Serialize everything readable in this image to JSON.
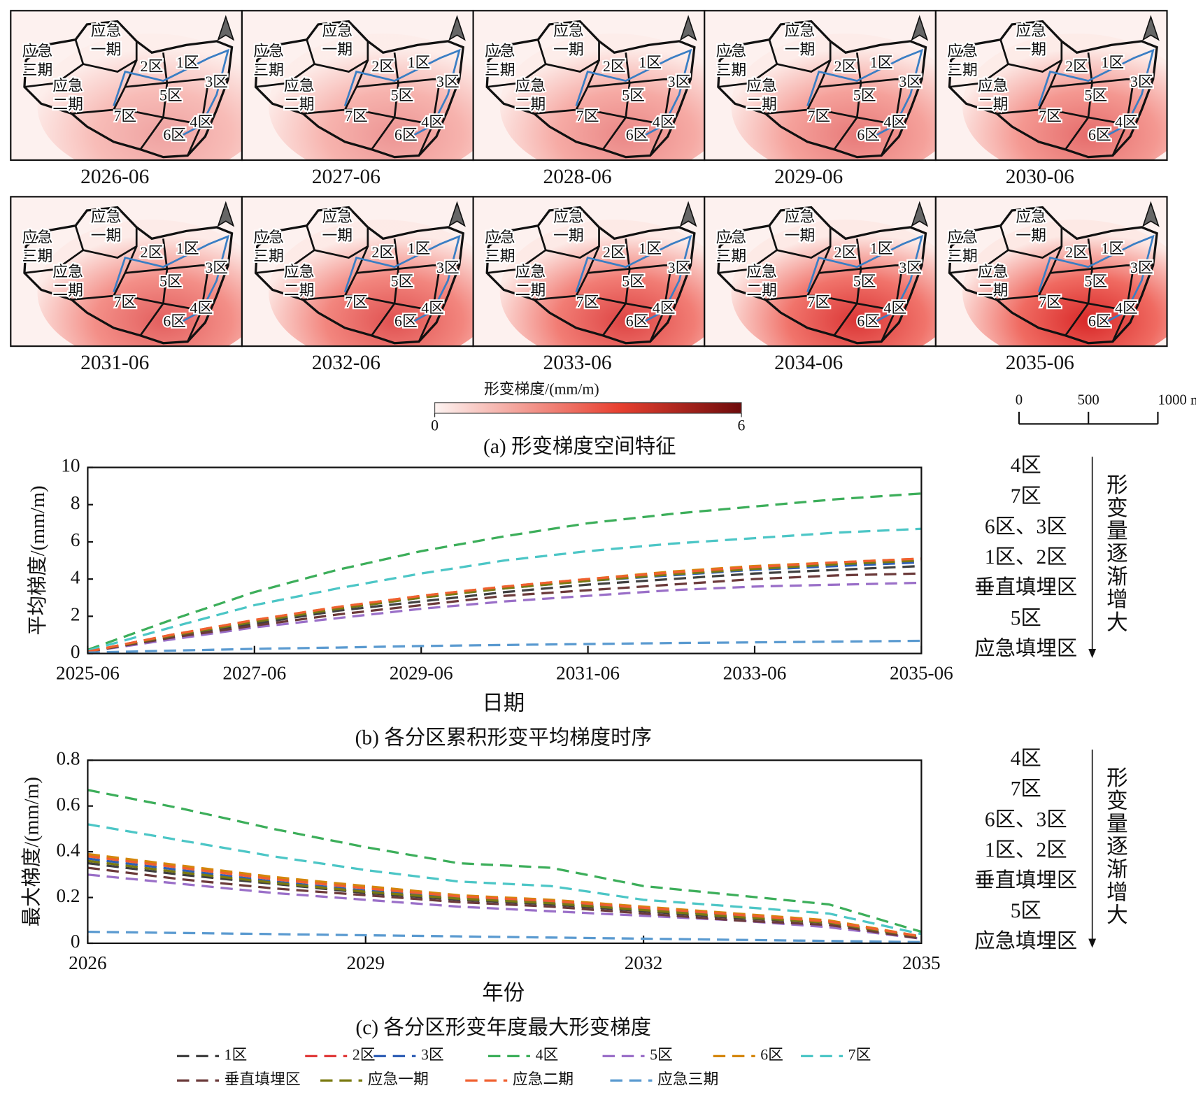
{
  "panel_a": {
    "maps": [
      {
        "date": "2026-06"
      },
      {
        "date": "2027-06"
      },
      {
        "date": "2028-06"
      },
      {
        "date": "2029-06"
      },
      {
        "date": "2030-06"
      },
      {
        "date": "2031-06"
      },
      {
        "date": "2032-06"
      },
      {
        "date": "2033-06"
      },
      {
        "date": "2034-06"
      },
      {
        "date": "2035-06"
      }
    ],
    "zones": [
      {
        "lines": [
          "应急",
          "一期"
        ]
      },
      {
        "lines": [
          "应急",
          "三期"
        ]
      },
      {
        "lines": [
          "应急",
          "二期"
        ]
      },
      {
        "lines": [
          "2区"
        ]
      },
      {
        "lines": [
          "1区"
        ]
      },
      {
        "lines": [
          "3区"
        ]
      },
      {
        "lines": [
          "5区"
        ]
      },
      {
        "lines": [
          "7区"
        ]
      },
      {
        "lines": [
          "4区"
        ]
      },
      {
        "lines": [
          "6区"
        ]
      }
    ],
    "colorbar": {
      "label": "形变梯度/(mm/m)",
      "ticks": [
        0,
        6
      ]
    },
    "scale_bar": {
      "ticks": [
        0,
        500,
        {
          "value": 1000,
          "label": "1000 m"
        }
      ]
    },
    "caption": "(a) 形变梯度空间特征"
  },
  "chart_data": [
    {
      "type": "line",
      "caption": "(b) 各分区累积形变平均梯度时序",
      "x_label": "日期",
      "y_label": "平均梯度/(mm/m)",
      "x": [
        "2025-06",
        "2026-06",
        "2027-06",
        "2028-06",
        "2029-06",
        "2030-06",
        "2031-06",
        "2032-06",
        "2033-06",
        "2034-06",
        "2035-06"
      ],
      "xticks": [
        "2025-06",
        "2027-06",
        "2029-06",
        "2031-06",
        "2033-06",
        "2035-06"
      ],
      "ylim": [
        0,
        10
      ],
      "yticks": [
        0,
        2,
        4,
        6,
        8,
        10
      ],
      "series": [
        {
          "color": "#404040",
          "values": [
            0.1,
            0.9,
            1.6,
            2.3,
            2.8,
            3.3,
            3.7,
            4.0,
            4.3,
            4.5,
            4.7
          ]
        },
        {
          "color": "#e03a3a",
          "values": [
            0.1,
            1.0,
            1.75,
            2.45,
            3.05,
            3.55,
            3.95,
            4.3,
            4.6,
            4.85,
            5.0
          ]
        },
        {
          "color": "#2f5fb5",
          "values": [
            0.1,
            0.95,
            1.7,
            2.4,
            3.0,
            3.5,
            3.9,
            4.2,
            4.5,
            4.7,
            4.9
          ]
        },
        {
          "color": "#3cae5a",
          "values": [
            0.2,
            1.8,
            3.3,
            4.5,
            5.5,
            6.3,
            7.0,
            7.5,
            7.9,
            8.3,
            8.6
          ]
        },
        {
          "color": "#9a6fc8",
          "values": [
            0.1,
            0.75,
            1.4,
            1.9,
            2.4,
            2.8,
            3.1,
            3.4,
            3.6,
            3.7,
            3.8
          ]
        },
        {
          "color": "#d4860b",
          "values": [
            0.1,
            1.0,
            1.8,
            2.5,
            3.1,
            3.6,
            4.0,
            4.4,
            4.7,
            4.9,
            5.1
          ]
        },
        {
          "color": "#4cc6c6",
          "values": [
            0.15,
            1.4,
            2.6,
            3.5,
            4.3,
            5.0,
            5.5,
            5.9,
            6.2,
            6.5,
            6.7
          ]
        },
        {
          "color": "#6b3a3a",
          "values": [
            0.1,
            0.85,
            1.5,
            2.1,
            2.6,
            3.1,
            3.4,
            3.7,
            4.0,
            4.2,
            4.3
          ]
        },
        {
          "color": "#7a7a10",
          "values": [
            0.1,
            0.95,
            1.7,
            2.4,
            3.0,
            3.5,
            3.9,
            4.25,
            4.55,
            4.8,
            5.0
          ]
        },
        {
          "color": "#f06030",
          "values": [
            0.1,
            1.0,
            1.8,
            2.5,
            3.1,
            3.6,
            4.0,
            4.35,
            4.65,
            4.9,
            5.1
          ]
        },
        {
          "color": "#5a9ad0",
          "values": [
            0.05,
            0.15,
            0.25,
            0.32,
            0.4,
            0.46,
            0.51,
            0.56,
            0.6,
            0.64,
            0.68
          ]
        }
      ],
      "side_note": {
        "items": [
          "4区",
          "7区",
          "6区、3区",
          "1区、2区",
          "垂直填埋区",
          "5区",
          "应急填埋区"
        ],
        "direction": "形变量逐渐增大"
      }
    },
    {
      "type": "line",
      "caption": "(c) 各分区形变年度最大形变梯度",
      "x_label": "年份",
      "y_label": "最大梯度/(mm/m)",
      "x": [
        2026,
        2027,
        2028,
        2029,
        2030,
        2031,
        2032,
        2033,
        2034,
        2035
      ],
      "xlim": [
        2026,
        2035
      ],
      "xticks": [
        2026,
        2029,
        2032,
        2035
      ],
      "ylim": [
        0,
        0.8
      ],
      "yticks": [
        0,
        0.2,
        0.4,
        0.6,
        0.8
      ],
      "series": [
        {
          "name": "1区",
          "color": "#404040",
          "values": [
            0.35,
            0.3,
            0.26,
            0.22,
            0.19,
            0.17,
            0.14,
            0.11,
            0.09,
            0.025
          ]
        },
        {
          "name": "2区",
          "color": "#e03a3a",
          "values": [
            0.385,
            0.335,
            0.285,
            0.245,
            0.205,
            0.185,
            0.155,
            0.125,
            0.095,
            0.03
          ]
        },
        {
          "name": "3区",
          "color": "#2f5fb5",
          "values": [
            0.37,
            0.32,
            0.27,
            0.23,
            0.2,
            0.18,
            0.15,
            0.12,
            0.09,
            0.03
          ]
        },
        {
          "name": "4区",
          "color": "#3cae5a",
          "values": [
            0.67,
            0.59,
            0.5,
            0.42,
            0.35,
            0.33,
            0.25,
            0.21,
            0.17,
            0.05
          ]
        },
        {
          "name": "5区",
          "color": "#9a6fc8",
          "values": [
            0.3,
            0.26,
            0.22,
            0.19,
            0.16,
            0.14,
            0.12,
            0.1,
            0.07,
            0.02
          ]
        },
        {
          "name": "6区",
          "color": "#d4860b",
          "values": [
            0.39,
            0.34,
            0.29,
            0.25,
            0.21,
            0.19,
            0.16,
            0.13,
            0.1,
            0.03
          ]
        },
        {
          "name": "7区",
          "color": "#4cc6c6",
          "values": [
            0.52,
            0.45,
            0.38,
            0.32,
            0.27,
            0.25,
            0.19,
            0.16,
            0.13,
            0.04
          ]
        },
        {
          "name": "垂直填埋区",
          "color": "#6b3a3a",
          "values": [
            0.33,
            0.28,
            0.24,
            0.21,
            0.18,
            0.16,
            0.13,
            0.1,
            0.08,
            0.02
          ]
        },
        {
          "name": "应急一期",
          "color": "#7a7a10",
          "values": [
            0.36,
            0.31,
            0.265,
            0.225,
            0.195,
            0.175,
            0.145,
            0.115,
            0.09,
            0.028
          ]
        },
        {
          "name": "应急二期",
          "color": "#f06030",
          "values": [
            0.38,
            0.33,
            0.28,
            0.24,
            0.205,
            0.185,
            0.155,
            0.125,
            0.095,
            0.03
          ]
        },
        {
          "name": "应急三期",
          "color": "#5a9ad0",
          "values": [
            0.05,
            0.045,
            0.04,
            0.035,
            0.03,
            0.025,
            0.02,
            0.015,
            0.01,
            0.005
          ]
        }
      ],
      "side_note": {
        "items": [
          "4区",
          "7区",
          "6区、3区",
          "1区、2区",
          "垂直填埋区",
          "5区",
          "应急填埋区"
        ],
        "direction": "形变量逐渐增大"
      }
    }
  ]
}
